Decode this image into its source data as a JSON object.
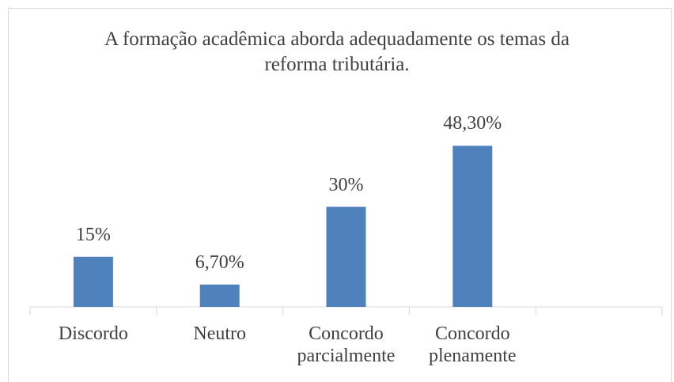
{
  "chart_data": {
    "type": "bar",
    "title": "A formação acadêmica aborda adequadamente os temas da reforma tributária.",
    "categories": [
      "Discordo",
      "Neutro",
      "Concordo parcialmente",
      "Concordo plenamente",
      null
    ],
    "values": [
      15,
      6.7,
      30,
      48.3,
      null
    ],
    "value_labels": [
      "15%",
      "6,70%",
      "30%",
      "48,30%",
      null
    ],
    "color": "#4f81bd",
    "ylim": [
      0,
      60
    ]
  }
}
